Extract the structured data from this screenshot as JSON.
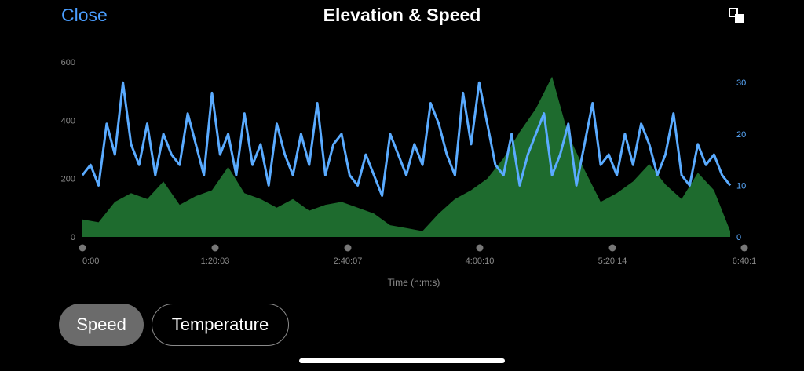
{
  "header": {
    "close_label": "Close",
    "title": "Elevation & Speed",
    "expand_icon": "expand-icon"
  },
  "buttons": {
    "speed_label": "Speed",
    "temperature_label": "Temperature"
  },
  "colors": {
    "speed": "#5aabff",
    "elevation": "#1e6b2e",
    "accent": "#4a9eff",
    "background": "#000000"
  },
  "chart_data": {
    "type": "area",
    "xlabel": "Time (h:m:s)",
    "ylabel": "",
    "x_ticks": [
      "0:00",
      "1:20:03",
      "2:40:07",
      "4:00:10",
      "5:20:14",
      "6:40:1"
    ],
    "xlim": [
      0,
      400
    ],
    "y_left": {
      "ticks": [
        "0",
        "200",
        "400",
        "600"
      ],
      "range": [
        0,
        600
      ]
    },
    "y_right": {
      "ticks": [
        "0",
        "10",
        "20",
        "30"
      ],
      "range": [
        0,
        34
      ]
    },
    "grid": false,
    "legend": "none",
    "series": [
      {
        "axis": "left",
        "kind": "area",
        "x": [
          0,
          10,
          20,
          30,
          40,
          50,
          60,
          70,
          80,
          90,
          100,
          110,
          120,
          130,
          140,
          150,
          160,
          170,
          180,
          190,
          200,
          210,
          220,
          230,
          240,
          250,
          260,
          270,
          280,
          290,
          300,
          310,
          320,
          330,
          340,
          350,
          360,
          370,
          380,
          390,
          400
        ],
        "values": [
          60,
          50,
          120,
          150,
          130,
          190,
          110,
          140,
          160,
          240,
          150,
          130,
          100,
          130,
          90,
          110,
          120,
          100,
          80,
          40,
          30,
          20,
          80,
          130,
          160,
          200,
          270,
          360,
          440,
          550,
          350,
          230,
          120,
          150,
          190,
          250,
          180,
          130,
          220,
          160,
          20
        ]
      },
      {
        "axis": "right",
        "kind": "line",
        "x": [
          0,
          5,
          10,
          15,
          20,
          25,
          30,
          35,
          40,
          45,
          50,
          55,
          60,
          65,
          70,
          75,
          80,
          85,
          90,
          95,
          100,
          105,
          110,
          115,
          120,
          125,
          130,
          135,
          140,
          145,
          150,
          155,
          160,
          165,
          170,
          175,
          180,
          185,
          190,
          195,
          200,
          205,
          210,
          215,
          220,
          225,
          230,
          235,
          240,
          245,
          250,
          255,
          260,
          265,
          270,
          275,
          280,
          285,
          290,
          295,
          300,
          305,
          310,
          315,
          320,
          325,
          330,
          335,
          340,
          345,
          350,
          355,
          360,
          365,
          370,
          375,
          380,
          385,
          390,
          395,
          400
        ],
        "values": [
          12,
          14,
          10,
          22,
          16,
          30,
          18,
          14,
          22,
          12,
          20,
          16,
          14,
          24,
          18,
          12,
          28,
          16,
          20,
          12,
          24,
          14,
          18,
          10,
          22,
          16,
          12,
          20,
          14,
          26,
          12,
          18,
          20,
          12,
          10,
          16,
          12,
          8,
          20,
          16,
          12,
          18,
          14,
          26,
          22,
          16,
          12,
          28,
          18,
          30,
          22,
          14,
          12,
          20,
          10,
          16,
          20,
          24,
          12,
          16,
          22,
          10,
          18,
          26,
          14,
          16,
          12,
          20,
          14,
          22,
          18,
          12,
          16,
          24,
          12,
          10,
          18,
          14,
          16,
          12,
          10
        ]
      }
    ]
  }
}
